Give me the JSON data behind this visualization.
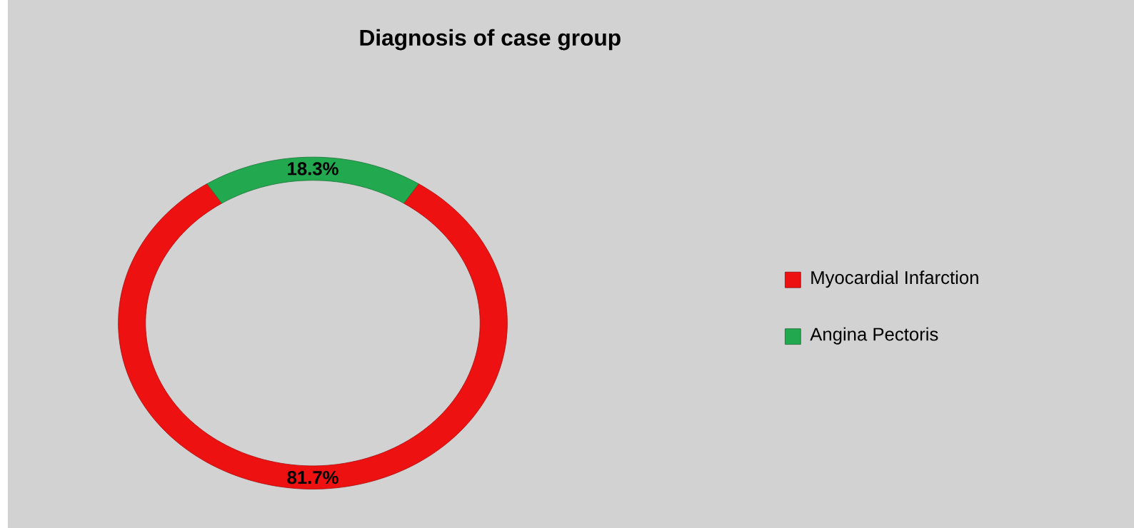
{
  "chart_data": {
    "type": "donut",
    "title": "Diagnosis of case group",
    "categories": [
      "Myocardial Infarction",
      "Angina Pectoris"
    ],
    "values": [
      81.7,
      18.3
    ],
    "colors": [
      "#ee1111",
      "#22a84f"
    ],
    "value_labels": [
      "81.7%",
      "18.3%"
    ],
    "legend": "right"
  }
}
